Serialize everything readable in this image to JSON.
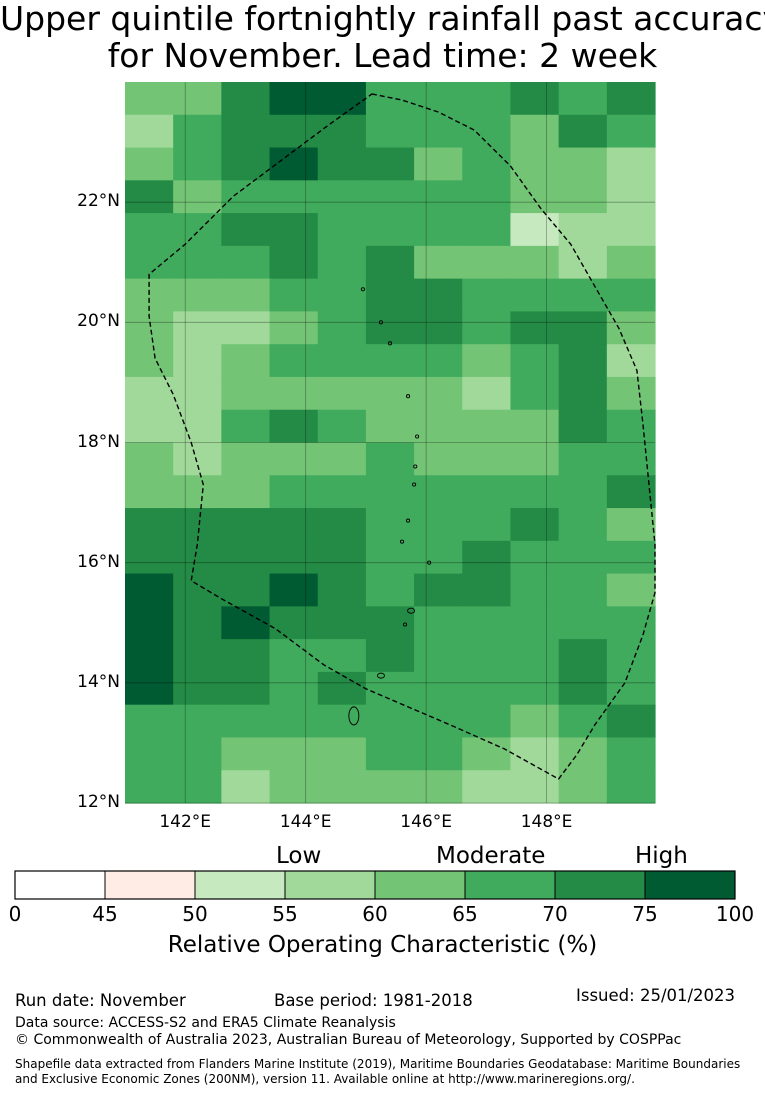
{
  "title_line1": "Upper quintile fortnightly rainfall past accuracy",
  "title_line2": "for November. Lead time: 2 week",
  "map": {
    "lon_range": [
      141.0,
      149.8
    ],
    "lat_range": [
      12.0,
      24.0
    ],
    "lon_ticks": [
      {
        "value": 142,
        "label": "142°E"
      },
      {
        "value": 144,
        "label": "144°E"
      },
      {
        "value": 146,
        "label": "146°E"
      },
      {
        "value": 148,
        "label": "148°E"
      }
    ],
    "lat_ticks": [
      {
        "value": 12,
        "label": "12°N"
      },
      {
        "value": 14,
        "label": "14°N"
      },
      {
        "value": 16,
        "label": "16°N"
      },
      {
        "value": 18,
        "label": "18°N"
      },
      {
        "value": 20,
        "label": "20°N"
      },
      {
        "value": 22,
        "label": "22°N"
      }
    ],
    "grid_note": "Relative Operating Characteristic (%) per grid cell, rows north to south",
    "roc_grid": [
      [
        62,
        62,
        72,
        77,
        77,
        67,
        67,
        67,
        72,
        67,
        72
      ],
      [
        57,
        67,
        72,
        72,
        72,
        67,
        67,
        67,
        62,
        72,
        67
      ],
      [
        62,
        67,
        72,
        77,
        72,
        72,
        62,
        67,
        62,
        62,
        57
      ],
      [
        72,
        62,
        67,
        67,
        67,
        67,
        67,
        67,
        62,
        62,
        57
      ],
      [
        67,
        67,
        72,
        72,
        67,
        67,
        67,
        67,
        52,
        57,
        57
      ],
      [
        67,
        67,
        67,
        72,
        67,
        72,
        62,
        62,
        62,
        57,
        62
      ],
      [
        62,
        62,
        62,
        67,
        67,
        72,
        72,
        67,
        67,
        67,
        67
      ],
      [
        62,
        57,
        57,
        62,
        67,
        72,
        72,
        67,
        72,
        72,
        62
      ],
      [
        62,
        57,
        62,
        67,
        67,
        67,
        67,
        62,
        67,
        72,
        57
      ],
      [
        57,
        57,
        62,
        62,
        62,
        62,
        62,
        57,
        67,
        72,
        62
      ],
      [
        57,
        57,
        67,
        72,
        67,
        62,
        62,
        62,
        62,
        72,
        67
      ],
      [
        62,
        57,
        62,
        62,
        62,
        67,
        62,
        62,
        62,
        67,
        67
      ],
      [
        62,
        62,
        62,
        67,
        67,
        67,
        67,
        67,
        67,
        67,
        72
      ],
      [
        72,
        72,
        72,
        72,
        72,
        67,
        67,
        67,
        72,
        67,
        62
      ],
      [
        72,
        72,
        72,
        72,
        72,
        67,
        67,
        72,
        67,
        67,
        67
      ],
      [
        77,
        72,
        72,
        77,
        72,
        67,
        72,
        72,
        67,
        67,
        62
      ],
      [
        77,
        72,
        77,
        72,
        72,
        72,
        67,
        67,
        67,
        67,
        67
      ],
      [
        77,
        72,
        72,
        67,
        67,
        72,
        67,
        67,
        67,
        72,
        67
      ],
      [
        77,
        72,
        72,
        67,
        72,
        67,
        67,
        67,
        67,
        72,
        67
      ],
      [
        67,
        67,
        67,
        67,
        67,
        67,
        67,
        67,
        62,
        67,
        72
      ],
      [
        67,
        67,
        62,
        62,
        62,
        67,
        67,
        62,
        57,
        62,
        67
      ],
      [
        67,
        67,
        57,
        62,
        62,
        62,
        62,
        57,
        57,
        62,
        67
      ]
    ],
    "eez_boundary": [
      [
        145.1,
        23.8
      ],
      [
        145.6,
        23.7
      ],
      [
        146.2,
        23.5
      ],
      [
        146.8,
        23.2
      ],
      [
        147.4,
        22.6
      ],
      [
        147.9,
        21.9
      ],
      [
        148.4,
        21.3
      ],
      [
        148.8,
        20.6
      ],
      [
        149.2,
        19.9
      ],
      [
        149.5,
        19.2
      ],
      [
        149.6,
        18.3
      ],
      [
        149.7,
        17.3
      ],
      [
        149.8,
        16.3
      ],
      [
        149.8,
        15.5
      ],
      [
        149.6,
        14.8
      ],
      [
        149.3,
        14.0
      ],
      [
        148.8,
        13.3
      ],
      [
        148.5,
        12.8
      ],
      [
        148.2,
        12.4
      ],
      [
        147.3,
        12.9
      ],
      [
        146.4,
        13.3
      ],
      [
        145.7,
        13.6
      ],
      [
        145.0,
        13.9
      ],
      [
        144.3,
        14.3
      ],
      [
        143.5,
        14.9
      ],
      [
        142.6,
        15.4
      ],
      [
        142.1,
        15.7
      ],
      [
        142.2,
        16.3
      ],
      [
        142.3,
        17.3
      ],
      [
        142.1,
        18.0
      ],
      [
        141.8,
        18.8
      ],
      [
        141.5,
        19.4
      ],
      [
        141.4,
        20.1
      ],
      [
        141.4,
        20.8
      ],
      [
        142.0,
        21.3
      ],
      [
        142.8,
        22.1
      ],
      [
        143.6,
        22.7
      ],
      [
        144.4,
        23.3
      ]
    ],
    "islands": [
      {
        "lon": 144.8,
        "lat": 13.45
      },
      {
        "lon": 145.25,
        "lat": 14.12
      },
      {
        "lon": 145.65,
        "lat": 14.97
      },
      {
        "lon": 145.75,
        "lat": 15.2
      },
      {
        "lon": 145.6,
        "lat": 16.35
      },
      {
        "lon": 145.8,
        "lat": 17.3
      },
      {
        "lon": 145.82,
        "lat": 17.6
      },
      {
        "lon": 145.85,
        "lat": 18.1
      },
      {
        "lon": 145.7,
        "lat": 18.77
      },
      {
        "lon": 145.4,
        "lat": 19.65
      },
      {
        "lon": 145.25,
        "lat": 20.0
      },
      {
        "lon": 144.95,
        "lat": 20.55
      },
      {
        "lon": 146.05,
        "lat": 16.0
      },
      {
        "lon": 145.7,
        "lat": 16.7
      }
    ]
  },
  "colorbar": {
    "categories": {
      "low": "Low",
      "moderate": "Moderate",
      "high": "High"
    },
    "bins": [
      {
        "from": 0,
        "to": 45,
        "color": "#ffffff"
      },
      {
        "from": 45,
        "to": 50,
        "color": "#ffece4"
      },
      {
        "from": 50,
        "to": 55,
        "color": "#c7e9c0"
      },
      {
        "from": 55,
        "to": 60,
        "color": "#a1d99b"
      },
      {
        "from": 60,
        "to": 65,
        "color": "#74c476"
      },
      {
        "from": 65,
        "to": 70,
        "color": "#41ab5d"
      },
      {
        "from": 70,
        "to": 75,
        "color": "#238b45"
      },
      {
        "from": 75,
        "to": 100,
        "color": "#005a32"
      }
    ],
    "ticks": [
      "0",
      "45",
      "50",
      "55",
      "60",
      "65",
      "70",
      "75",
      "100"
    ],
    "label": "Relative Operating Characteristic (%)"
  },
  "footer": {
    "run_date": "Run date: November",
    "base_period": "Base period: 1981-2018",
    "issued": "Issued: 25/01/2023",
    "data_source": "Data source: ACCESS-S2 and ERA5 Climate Reanalysis",
    "copyright": "© Commonwealth of Australia 2023, Australian Bureau of Meteorology, Supported by COSPPac",
    "shapefile_line1": "Shapefile data extracted from Flanders Marine Institute (2019), Maritime Boundaries Geodatabase: Maritime Boundaries",
    "shapefile_line2": "and Exclusive Economic Zones (200NM), version 11. Available online at http://www.marineregions.org/."
  }
}
